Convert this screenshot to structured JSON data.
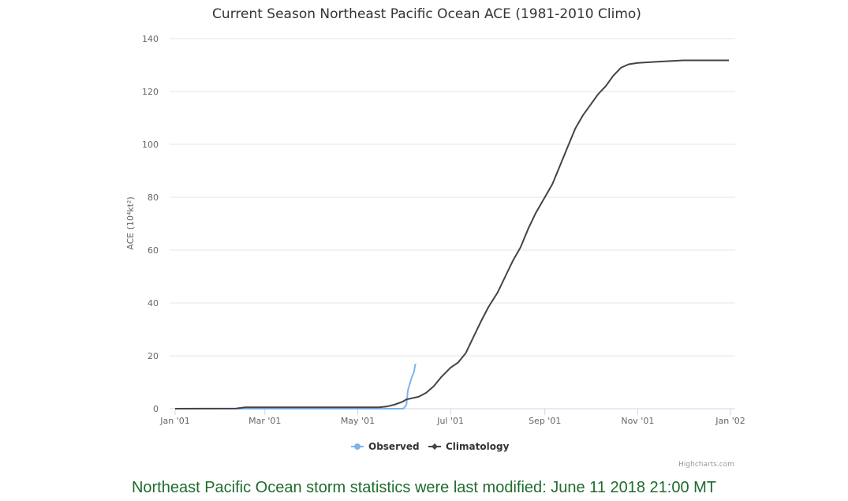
{
  "page": {
    "footer": "Northeast Pacific Ocean storm statistics were last modified: June 11 2018 21:00 MT",
    "credits": "Highcharts.com"
  },
  "chart_data": {
    "type": "line",
    "title": "Current Season Northeast Pacific Ocean ACE (1981-2010 Climo)",
    "ylabel": "ACE (10⁴kt²)",
    "xlabel": "",
    "ylim": [
      0,
      140
    ],
    "yticks": [
      0,
      20,
      40,
      60,
      80,
      100,
      120,
      140
    ],
    "xlim": [
      "2001-01-01",
      "2002-01-01"
    ],
    "xticks": [
      {
        "date": "2001-01-01",
        "label": "Jan '01"
      },
      {
        "date": "2001-03-01",
        "label": "Mar '01"
      },
      {
        "date": "2001-05-01",
        "label": "May '01"
      },
      {
        "date": "2001-07-01",
        "label": "Jul '01"
      },
      {
        "date": "2001-09-01",
        "label": "Sep '01"
      },
      {
        "date": "2001-11-01",
        "label": "Nov '01"
      },
      {
        "date": "2002-01-01",
        "label": "Jan '02"
      }
    ],
    "grid": true,
    "legend_position": "bottom-center",
    "series": [
      {
        "name": "Observed",
        "color": "#7cb5ec",
        "points": [
          [
            "2001-01-01",
            0
          ],
          [
            "2001-05-31",
            0
          ],
          [
            "2001-06-02",
            1.5
          ],
          [
            "2001-06-03",
            7
          ],
          [
            "2001-06-05",
            11
          ],
          [
            "2001-06-07",
            14
          ],
          [
            "2001-06-08",
            17
          ]
        ]
      },
      {
        "name": "Climatology",
        "color": "#434348",
        "points": [
          [
            "2001-01-01",
            0
          ],
          [
            "2001-02-10",
            0.1
          ],
          [
            "2001-02-16",
            0.5
          ],
          [
            "2001-05-15",
            0.5
          ],
          [
            "2001-05-20",
            0.8
          ],
          [
            "2001-05-25",
            1.5
          ],
          [
            "2001-05-30",
            2.5
          ],
          [
            "2001-06-02",
            3.5
          ],
          [
            "2001-06-10",
            4.5
          ],
          [
            "2001-06-15",
            6
          ],
          [
            "2001-06-20",
            8.5
          ],
          [
            "2001-06-25",
            12
          ],
          [
            "2001-07-01",
            15.5
          ],
          [
            "2001-07-06",
            17.5
          ],
          [
            "2001-07-11",
            21
          ],
          [
            "2001-07-16",
            27
          ],
          [
            "2001-07-21",
            33
          ],
          [
            "2001-07-26",
            38.5
          ],
          [
            "2001-08-01",
            44
          ],
          [
            "2001-08-06",
            50
          ],
          [
            "2001-08-11",
            56
          ],
          [
            "2001-08-16",
            61
          ],
          [
            "2001-08-21",
            68
          ],
          [
            "2001-08-26",
            74
          ],
          [
            "2001-09-01",
            80
          ],
          [
            "2001-09-06",
            85
          ],
          [
            "2001-09-11",
            92
          ],
          [
            "2001-09-16",
            99
          ],
          [
            "2001-09-21",
            106
          ],
          [
            "2001-09-26",
            111
          ],
          [
            "2001-10-01",
            115
          ],
          [
            "2001-10-06",
            119
          ],
          [
            "2001-10-11",
            122
          ],
          [
            "2001-10-16",
            126
          ],
          [
            "2001-10-21",
            129
          ],
          [
            "2001-10-26",
            130.3
          ],
          [
            "2001-11-01",
            130.8
          ],
          [
            "2001-11-15",
            131.3
          ],
          [
            "2001-12-01",
            131.8
          ],
          [
            "2001-12-31",
            131.8
          ]
        ]
      }
    ]
  }
}
